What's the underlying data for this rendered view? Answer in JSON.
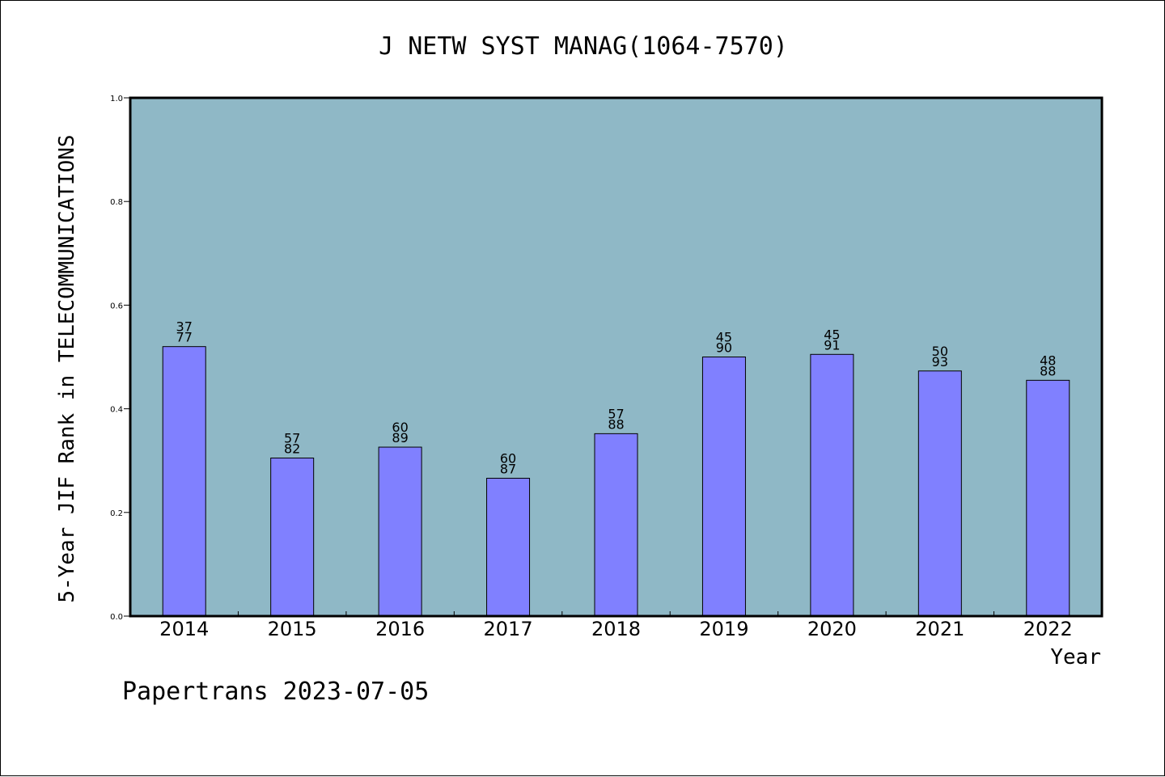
{
  "chart_data": {
    "type": "bar",
    "title": "J NETW SYST MANAG(1064-7570)",
    "xlabel": "Year",
    "ylabel": "5-Year JIF Rank in TELECOMMUNICATIONS",
    "ylim": [
      0,
      1.0
    ],
    "yticks": [
      "0.0",
      "0.2",
      "0.4",
      "0.6",
      "0.8",
      "1.0"
    ],
    "categories": [
      "2014",
      "2015",
      "2016",
      "2017",
      "2018",
      "2019",
      "2020",
      "2021",
      "2022"
    ],
    "values": [
      0.52,
      0.305,
      0.326,
      0.266,
      0.352,
      0.5,
      0.505,
      0.473,
      0.455
    ],
    "labels_top": [
      "37",
      "57",
      "60",
      "60",
      "57",
      "45",
      "45",
      "50",
      "48"
    ],
    "labels_bottom": [
      "77",
      "82",
      "89",
      "87",
      "88",
      "90",
      "91",
      "93",
      "88"
    ],
    "grid": false,
    "colors": {
      "plot_bg": "#8fb8c6",
      "bar": "#8080ff"
    }
  },
  "footer": "Papertrans 2023-07-05"
}
